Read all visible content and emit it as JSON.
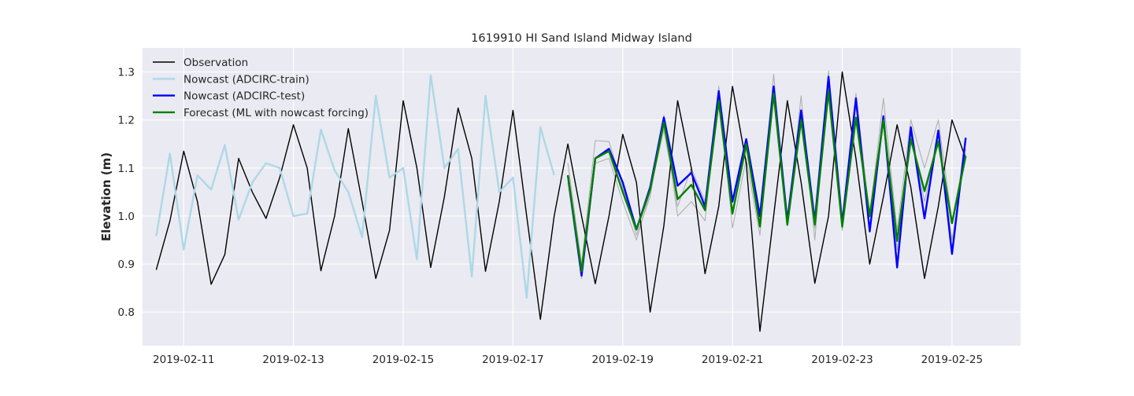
{
  "chart_data": {
    "type": "line",
    "title": "1619910 HI Sand Island Midway Island",
    "xlabel": "",
    "ylabel": "Elevation (m)",
    "x_ticks": [
      "2019-02-11",
      "2019-02-13",
      "2019-02-15",
      "2019-02-17",
      "2019-02-19",
      "2019-02-21",
      "2019-02-23",
      "2019-02-25"
    ],
    "y_ticks": [
      "0.8",
      "0.9",
      "1.0",
      "1.1",
      "1.2",
      "1.3"
    ],
    "xlim": [
      "2019-02-10 06:00",
      "2019-02-26 06:00"
    ],
    "ylim": [
      0.73,
      1.35
    ],
    "grid": true,
    "legend_position": "top-left",
    "colors": {
      "background": "#eaeaf2",
      "grid": "#ffffff",
      "Observation": "#000000",
      "Nowcast (ADCIRC-train)": "#add8e6",
      "Nowcast (ADCIRC-test)": "#0000ff",
      "Forecast (ML with nowcast forcing)": "#008000",
      "ensemble": "#b0b0b0"
    },
    "series": [
      {
        "name": "Observation",
        "points": [
          [
            "2019-02-10 12:00",
            0.888
          ],
          [
            "2019-02-10 18:00",
            0.99
          ],
          [
            "2019-02-11 00:00",
            1.135
          ],
          [
            "2019-02-11 06:00",
            1.03
          ],
          [
            "2019-02-11 12:00",
            0.858
          ],
          [
            "2019-02-11 18:00",
            0.92
          ],
          [
            "2019-02-12 00:00",
            1.12
          ],
          [
            "2019-02-12 06:00",
            1.05
          ],
          [
            "2019-02-12 12:00",
            0.995
          ],
          [
            "2019-02-12 18:00",
            1.08
          ],
          [
            "2019-02-13 00:00",
            1.19
          ],
          [
            "2019-02-13 06:00",
            1.1
          ],
          [
            "2019-02-13 12:00",
            0.886
          ],
          [
            "2019-02-13 18:00",
            1.0
          ],
          [
            "2019-02-14 00:00",
            1.182
          ],
          [
            "2019-02-14 06:00",
            1.03
          ],
          [
            "2019-02-14 12:00",
            0.87
          ],
          [
            "2019-02-14 18:00",
            0.97
          ],
          [
            "2019-02-15 00:00",
            1.24
          ],
          [
            "2019-02-15 06:00",
            1.1
          ],
          [
            "2019-02-15 12:00",
            0.893
          ],
          [
            "2019-02-15 18:00",
            1.04
          ],
          [
            "2019-02-16 00:00",
            1.225
          ],
          [
            "2019-02-16 06:00",
            1.12
          ],
          [
            "2019-02-16 12:00",
            0.885
          ],
          [
            "2019-02-16 18:00",
            1.03
          ],
          [
            "2019-02-17 00:00",
            1.22
          ],
          [
            "2019-02-17 06:00",
            1.0
          ],
          [
            "2019-02-17 12:00",
            0.785
          ],
          [
            "2019-02-17 18:00",
            1.0
          ],
          [
            "2019-02-18 00:00",
            1.15
          ],
          [
            "2019-02-18 06:00",
            1.0
          ],
          [
            "2019-02-18 12:00",
            0.859
          ],
          [
            "2019-02-18 18:00",
            1.0
          ],
          [
            "2019-02-19 00:00",
            1.17
          ],
          [
            "2019-02-19 06:00",
            1.07
          ],
          [
            "2019-02-19 12:00",
            0.8
          ],
          [
            "2019-02-19 18:00",
            0.98
          ],
          [
            "2019-02-20 00:00",
            1.24
          ],
          [
            "2019-02-20 06:00",
            1.1
          ],
          [
            "2019-02-20 12:00",
            0.88
          ],
          [
            "2019-02-20 18:00",
            1.02
          ],
          [
            "2019-02-21 00:00",
            1.27
          ],
          [
            "2019-02-21 06:00",
            1.11
          ],
          [
            "2019-02-21 12:00",
            0.76
          ],
          [
            "2019-02-21 18:00",
            1.0
          ],
          [
            "2019-02-22 00:00",
            1.24
          ],
          [
            "2019-02-22 06:00",
            1.07
          ],
          [
            "2019-02-22 12:00",
            0.86
          ],
          [
            "2019-02-22 18:00",
            1.0
          ],
          [
            "2019-02-23 00:00",
            1.3
          ],
          [
            "2019-02-23 06:00",
            1.12
          ],
          [
            "2019-02-23 12:00",
            0.9
          ],
          [
            "2019-02-23 18:00",
            1.04
          ],
          [
            "2019-02-24 00:00",
            1.19
          ],
          [
            "2019-02-24 06:00",
            1.06
          ],
          [
            "2019-02-24 12:00",
            0.87
          ],
          [
            "2019-02-24 18:00",
            1.02
          ],
          [
            "2019-02-25 00:00",
            1.2
          ],
          [
            "2019-02-25 06:00",
            1.12
          ]
        ]
      },
      {
        "name": "Nowcast (ADCIRC-train)",
        "points": [
          [
            "2019-02-10 12:00",
            0.958
          ],
          [
            "2019-02-10 18:00",
            1.13
          ],
          [
            "2019-02-11 00:00",
            0.93
          ],
          [
            "2019-02-11 06:00",
            1.085
          ],
          [
            "2019-02-11 12:00",
            1.055
          ],
          [
            "2019-02-11 18:00",
            1.148
          ],
          [
            "2019-02-12 00:00",
            0.992
          ],
          [
            "2019-02-12 06:00",
            1.07
          ],
          [
            "2019-02-12 12:00",
            1.11
          ],
          [
            "2019-02-12 18:00",
            1.1
          ],
          [
            "2019-02-13 00:00",
            1.0
          ],
          [
            "2019-02-13 06:00",
            1.005
          ],
          [
            "2019-02-13 12:00",
            1.18
          ],
          [
            "2019-02-13 18:00",
            1.095
          ],
          [
            "2019-02-14 00:00",
            1.05
          ],
          [
            "2019-02-14 06:00",
            0.956
          ],
          [
            "2019-02-14 12:00",
            1.25
          ],
          [
            "2019-02-14 18:00",
            1.08
          ],
          [
            "2019-02-15 00:00",
            1.1
          ],
          [
            "2019-02-15 06:00",
            0.91
          ],
          [
            "2019-02-15 12:00",
            1.293
          ],
          [
            "2019-02-15 18:00",
            1.1
          ],
          [
            "2019-02-16 00:00",
            1.14
          ],
          [
            "2019-02-16 06:00",
            0.874
          ],
          [
            "2019-02-16 12:00",
            1.25
          ],
          [
            "2019-02-16 18:00",
            1.05
          ],
          [
            "2019-02-17 00:00",
            1.08
          ],
          [
            "2019-02-17 06:00",
            0.83
          ],
          [
            "2019-02-17 12:00",
            1.185
          ],
          [
            "2019-02-17 18:00",
            1.085
          ]
        ]
      },
      {
        "name": "Nowcast (ADCIRC-test)",
        "points": [
          [
            "2019-02-18 00:00",
            1.085
          ],
          [
            "2019-02-18 06:00",
            0.876
          ],
          [
            "2019-02-18 12:00",
            1.12
          ],
          [
            "2019-02-18 18:00",
            1.14
          ],
          [
            "2019-02-19 00:00",
            1.07
          ],
          [
            "2019-02-19 06:00",
            0.972
          ],
          [
            "2019-02-19 12:00",
            1.06
          ],
          [
            "2019-02-19 18:00",
            1.205
          ],
          [
            "2019-02-20 00:00",
            1.063
          ],
          [
            "2019-02-20 06:00",
            1.09
          ],
          [
            "2019-02-20 12:00",
            1.02
          ],
          [
            "2019-02-20 18:00",
            1.26
          ],
          [
            "2019-02-21 00:00",
            1.03
          ],
          [
            "2019-02-21 06:00",
            1.16
          ],
          [
            "2019-02-21 12:00",
            1.0
          ],
          [
            "2019-02-21 18:00",
            1.27
          ],
          [
            "2019-02-22 00:00",
            0.99
          ],
          [
            "2019-02-22 06:00",
            1.22
          ],
          [
            "2019-02-22 12:00",
            0.99
          ],
          [
            "2019-02-22 18:00",
            1.29
          ],
          [
            "2019-02-23 00:00",
            0.985
          ],
          [
            "2019-02-23 06:00",
            1.245
          ],
          [
            "2019-02-23 12:00",
            0.968
          ],
          [
            "2019-02-23 18:00",
            1.208
          ],
          [
            "2019-02-24 00:00",
            0.893
          ],
          [
            "2019-02-24 06:00",
            1.185
          ],
          [
            "2019-02-24 12:00",
            0.995
          ],
          [
            "2019-02-24 18:00",
            1.178
          ],
          [
            "2019-02-25 00:00",
            0.921
          ],
          [
            "2019-02-25 06:00",
            1.163
          ]
        ]
      },
      {
        "name": "Forecast (ML with nowcast forcing)",
        "points": [
          [
            "2019-02-18 00:00",
            1.085
          ],
          [
            "2019-02-18 06:00",
            0.885
          ],
          [
            "2019-02-18 12:00",
            1.12
          ],
          [
            "2019-02-18 18:00",
            1.135
          ],
          [
            "2019-02-19 00:00",
            1.05
          ],
          [
            "2019-02-19 06:00",
            0.972
          ],
          [
            "2019-02-19 12:00",
            1.055
          ],
          [
            "2019-02-19 18:00",
            1.195
          ],
          [
            "2019-02-20 00:00",
            1.035
          ],
          [
            "2019-02-20 06:00",
            1.065
          ],
          [
            "2019-02-20 12:00",
            1.012
          ],
          [
            "2019-02-20 18:00",
            1.24
          ],
          [
            "2019-02-21 00:00",
            1.005
          ],
          [
            "2019-02-21 06:00",
            1.15
          ],
          [
            "2019-02-21 12:00",
            0.978
          ],
          [
            "2019-02-21 18:00",
            1.255
          ],
          [
            "2019-02-22 00:00",
            0.982
          ],
          [
            "2019-02-22 06:00",
            1.2
          ],
          [
            "2019-02-22 12:00",
            0.982
          ],
          [
            "2019-02-22 18:00",
            1.26
          ],
          [
            "2019-02-23 00:00",
            0.978
          ],
          [
            "2019-02-23 06:00",
            1.205
          ],
          [
            "2019-02-23 12:00",
            1.0
          ],
          [
            "2019-02-23 18:00",
            1.2
          ],
          [
            "2019-02-24 00:00",
            0.948
          ],
          [
            "2019-02-24 06:00",
            1.16
          ],
          [
            "2019-02-24 12:00",
            1.052
          ],
          [
            "2019-02-24 18:00",
            1.155
          ],
          [
            "2019-02-25 00:00",
            0.985
          ],
          [
            "2019-02-25 06:00",
            1.125
          ]
        ]
      }
    ],
    "ensemble_lines": [
      [
        [
          "2019-02-18 00:00",
          1.11
        ],
        [
          "2019-02-18 06:00",
          0.9
        ],
        [
          "2019-02-18 12:00",
          1.157
        ],
        [
          "2019-02-18 18:00",
          1.155
        ],
        [
          "2019-02-19 00:00",
          1.06
        ],
        [
          "2019-02-19 06:00",
          0.96
        ],
        [
          "2019-02-19 12:00",
          1.04
        ],
        [
          "2019-02-19 18:00",
          1.21
        ],
        [
          "2019-02-20 00:00",
          1.0
        ],
        [
          "2019-02-20 06:00",
          1.03
        ],
        [
          "2019-02-20 12:00",
          0.99
        ],
        [
          "2019-02-20 18:00",
          1.27
        ],
        [
          "2019-02-21 00:00",
          0.975
        ],
        [
          "2019-02-21 06:00",
          1.12
        ],
        [
          "2019-02-21 12:00",
          0.96
        ],
        [
          "2019-02-21 18:00",
          1.295
        ],
        [
          "2019-02-22 00:00",
          0.98
        ],
        [
          "2019-02-22 06:00",
          1.25
        ],
        [
          "2019-02-22 12:00",
          0.95
        ],
        [
          "2019-02-22 18:00",
          1.302
        ],
        [
          "2019-02-23 00:00",
          0.975
        ],
        [
          "2019-02-23 06:00",
          1.255
        ],
        [
          "2019-02-23 12:00",
          1.0
        ],
        [
          "2019-02-23 18:00",
          1.245
        ],
        [
          "2019-02-24 00:00",
          0.97
        ],
        [
          "2019-02-24 06:00",
          1.2
        ],
        [
          "2019-02-24 12:00",
          1.1
        ],
        [
          "2019-02-24 18:00",
          1.2
        ],
        [
          "2019-02-25 00:00",
          0.99
        ],
        [
          "2019-02-25 06:00",
          1.14
        ]
      ],
      [
        [
          "2019-02-18 00:00",
          1.07
        ],
        [
          "2019-02-18 06:00",
          0.87
        ],
        [
          "2019-02-18 12:00",
          1.11
        ],
        [
          "2019-02-18 18:00",
          1.12
        ],
        [
          "2019-02-19 00:00",
          1.03
        ],
        [
          "2019-02-19 06:00",
          0.95
        ],
        [
          "2019-02-19 12:00",
          1.05
        ],
        [
          "2019-02-19 18:00",
          1.18
        ],
        [
          "2019-02-20 00:00",
          1.02
        ],
        [
          "2019-02-20 06:00",
          1.1
        ],
        [
          "2019-02-20 12:00",
          1.03
        ],
        [
          "2019-02-20 18:00",
          1.23
        ],
        [
          "2019-02-21 00:00",
          1.01
        ],
        [
          "2019-02-21 06:00",
          1.14
        ],
        [
          "2019-02-21 12:00",
          0.99
        ],
        [
          "2019-02-21 18:00",
          1.25
        ],
        [
          "2019-02-22 00:00",
          0.99
        ],
        [
          "2019-02-22 06:00",
          1.21
        ],
        [
          "2019-02-22 12:00",
          0.975
        ],
        [
          "2019-02-22 18:00",
          1.27
        ],
        [
          "2019-02-23 00:00",
          0.97
        ],
        [
          "2019-02-23 06:00",
          1.23
        ],
        [
          "2019-02-23 12:00",
          0.975
        ],
        [
          "2019-02-23 18:00",
          1.2
        ],
        [
          "2019-02-24 00:00",
          0.93
        ],
        [
          "2019-02-24 06:00",
          1.17
        ],
        [
          "2019-02-24 12:00",
          1.03
        ],
        [
          "2019-02-24 18:00",
          1.17
        ],
        [
          "2019-02-25 00:00",
          0.95
        ],
        [
          "2019-02-25 06:00",
          1.13
        ]
      ]
    ]
  }
}
